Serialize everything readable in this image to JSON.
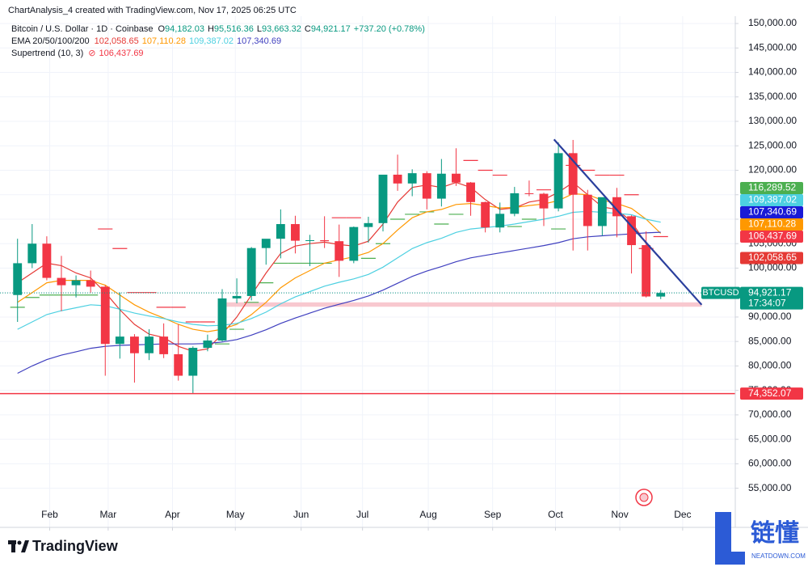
{
  "header": {
    "credit": "ChartAnalysis_4 created with TradingView.com, Nov 17, 2025 06:25 UTC"
  },
  "chart_data": {
    "type": "candlestick",
    "symbol": "Bitcoin / U.S. Dollar · 1D · Coinbase",
    "ohlc_legend": [
      {
        "key": "O",
        "value": "94,182.03"
      },
      {
        "key": "H",
        "value": "95,516.36"
      },
      {
        "key": "L",
        "value": "93,663.32"
      },
      {
        "key": "C",
        "value": "94,921.17"
      }
    ],
    "change": "+737.20 (+0.78%)",
    "x": [
      0,
      1,
      2,
      3,
      4,
      5,
      6,
      7,
      8,
      9,
      10,
      11,
      12,
      13,
      14,
      15,
      16,
      17,
      18,
      19,
      20,
      21,
      22,
      23,
      24,
      25,
      26,
      27,
      28,
      29,
      30,
      31,
      32,
      33,
      34,
      35,
      36,
      37,
      38,
      39,
      40,
      41,
      42,
      43,
      44
    ],
    "open": [
      94500,
      101000,
      105000,
      98000,
      96500,
      97500,
      96200,
      84500,
      86000,
      82600,
      86000,
      82400,
      78000,
      83700,
      85200,
      93800,
      94300,
      104100,
      106000,
      109000,
      105600,
      105700,
      105500,
      101500,
      108400,
      109200,
      119100,
      117300,
      119400,
      114200,
      119300,
      117500,
      113500,
      108300,
      111100,
      115300,
      115200,
      112200,
      123500,
      115000,
      108600,
      114500,
      110600,
      104700,
      94182.03
    ],
    "high": [
      106000,
      109000,
      106500,
      102500,
      98500,
      99500,
      96500,
      95000,
      86500,
      87500,
      88700,
      88500,
      84000,
      86400,
      95700,
      97900,
      104300,
      105800,
      112000,
      110700,
      106800,
      110600,
      108900,
      108500,
      110500,
      119000,
      123200,
      120200,
      119800,
      122300,
      124500,
      117600,
      113600,
      113400,
      116600,
      117900,
      115400,
      125700,
      126200,
      116000,
      114000,
      116400,
      110800,
      107500,
      95516.36
    ],
    "low": [
      89000,
      100000,
      97500,
      91200,
      94000,
      95000,
      78000,
      81500,
      76600,
      81200,
      81600,
      77000,
      74400,
      83000,
      85000,
      92800,
      93400,
      100700,
      102000,
      103000,
      100400,
      104100,
      98200,
      101000,
      105200,
      107500,
      115800,
      114700,
      112000,
      112600,
      116800,
      110700,
      107300,
      107300,
      110600,
      114700,
      108600,
      111600,
      103600,
      103600,
      106600,
      106300,
      98900,
      94000,
      93663.32
    ],
    "close": [
      101000,
      105000,
      98000,
      96500,
      97500,
      96200,
      84500,
      86000,
      82600,
      86000,
      82400,
      78000,
      83700,
      85200,
      93800,
      94300,
      104100,
      106000,
      109000,
      105600,
      105700,
      105500,
      101500,
      108400,
      109200,
      119100,
      117300,
      119400,
      114200,
      119300,
      117500,
      113500,
      108300,
      111100,
      115300,
      115200,
      112200,
      123500,
      115000,
      108600,
      114500,
      110600,
      104700,
      94200,
      94921.17
    ],
    "up_color": "#089981",
    "down_color": "#f23645",
    "ema": {
      "label": "EMA 20/50/100/200",
      "series": [
        {
          "color": "#e53935",
          "legend_value": "102,058.65",
          "values": [
            97000,
            99000,
            101000,
            100500,
            99000,
            98000,
            95000,
            91500,
            88500,
            86500,
            85800,
            84000,
            83000,
            83500,
            86500,
            90000,
            94500,
            99000,
            103000,
            104500,
            105000,
            105300,
            104800,
            104500,
            105500,
            109000,
            113500,
            116500,
            117000,
            116500,
            117500,
            116500,
            114000,
            112000,
            112300,
            113500,
            114000,
            115500,
            117500,
            115000,
            112500,
            112000,
            109500,
            105000,
            102058.65
          ]
        },
        {
          "color": "#ff9800",
          "legend_value": "107,110.28",
          "values": [
            93000,
            95000,
            97000,
            97500,
            97500,
            97500,
            96500,
            94500,
            92500,
            91000,
            89800,
            88500,
            87500,
            87000,
            87500,
            88500,
            90500,
            93000,
            96000,
            98000,
            99500,
            101000,
            101700,
            102300,
            103200,
            105000,
            107800,
            110300,
            111500,
            112000,
            113000,
            113200,
            112800,
            112300,
            112400,
            112800,
            113100,
            113800,
            115200,
            115000,
            113900,
            113200,
            112200,
            110000,
            107110.28
          ]
        },
        {
          "color": "#4dd0e1",
          "legend_value": "109,387.02",
          "values": [
            87500,
            89000,
            90500,
            91300,
            91900,
            92500,
            92300,
            91600,
            90800,
            90200,
            89700,
            89000,
            88500,
            88200,
            88300,
            88700,
            89700,
            91000,
            92700,
            94100,
            95200,
            96300,
            97100,
            97800,
            98700,
            100200,
            102100,
            104000,
            105200,
            106100,
            107300,
            108000,
            108300,
            108600,
            109000,
            109500,
            110000,
            110600,
            111400,
            111600,
            111400,
            111200,
            110900,
            110000,
            109387.02
          ]
        },
        {
          "color": "#3f3fbf",
          "legend_value": "107,340.69",
          "values": [
            78500,
            80000,
            81300,
            82200,
            82900,
            83600,
            84000,
            84200,
            84300,
            84400,
            84500,
            84500,
            84500,
            84600,
            84900,
            85400,
            86300,
            87400,
            88700,
            89800,
            90800,
            91800,
            92600,
            93400,
            94300,
            95500,
            96900,
            98300,
            99400,
            100300,
            101300,
            102100,
            102600,
            103100,
            103600,
            104100,
            104600,
            105200,
            106000,
            106400,
            106600,
            106800,
            107000,
            107200,
            107340.69
          ]
        }
      ]
    },
    "supertrend": {
      "label": "Supertrend (10, 3)",
      "legend_value": "106,437.69",
      "up_color": "#4caf50",
      "down_color": "#f23645",
      "values": [
        92000,
        94000,
        94500,
        94500,
        94500,
        94500,
        108000,
        104000,
        95000,
        95000,
        92000,
        92000,
        89000,
        89000,
        84500,
        87500,
        93000,
        97000,
        101000,
        101000,
        101000,
        101000,
        110300,
        110300,
        102000,
        105000,
        110000,
        111000,
        111500,
        109000,
        111000,
        122000,
        120000,
        119000,
        108500,
        110000,
        116000,
        108000,
        121000,
        120000,
        119000,
        119000,
        115000,
        104000,
        106437.69
      ]
    },
    "price_labels": [
      {
        "value": 116289.52,
        "label": "116,289.52",
        "color": "#4caf50"
      },
      {
        "value": 109387.02,
        "label": "109,387.02",
        "color": "#4dd0e1"
      },
      {
        "value": 107340.69,
        "label": "107,340.69",
        "color": "#1a1ad6"
      },
      {
        "value": 107110.28,
        "label": "107,110.28",
        "color": "#ff9800"
      },
      {
        "value": 106437.69,
        "label": "106,437.69",
        "color": "#f23645"
      },
      {
        "value": 102058.65,
        "label": "102,058.65",
        "color": "#e53935"
      }
    ],
    "last_price": {
      "symbol": "BTCUSD",
      "value": 94921.17,
      "label": "94,921.17",
      "countdown": "17:34:07",
      "color": "#089981"
    },
    "support_line": {
      "value": 74352.07,
      "label": "74,352.07",
      "color": "#f23645"
    },
    "zone": {
      "x": [
        13.7,
        46.8
      ],
      "y": [
        92100,
        93000
      ],
      "color": "#f8c8cf"
    },
    "trendline": {
      "x": [
        36.7,
        46.8
      ],
      "y": [
        126300,
        92500
      ],
      "color": "#2a3f9d"
    },
    "xlim": [
      -1.2,
      49.1
    ],
    "xticks": [
      {
        "value": 2.2,
        "label": "Feb"
      },
      {
        "value": 6.2,
        "label": "Mar"
      },
      {
        "value": 10.6,
        "label": "Apr"
      },
      {
        "value": 14.9,
        "label": "May"
      },
      {
        "value": 19.4,
        "label": "Jun"
      },
      {
        "value": 23.6,
        "label": "Jul"
      },
      {
        "value": 28.1,
        "label": "Aug"
      },
      {
        "value": 32.5,
        "label": "Sep"
      },
      {
        "value": 36.8,
        "label": "Oct"
      },
      {
        "value": 41.2,
        "label": "Nov"
      },
      {
        "value": 45.5,
        "label": "Dec"
      }
    ],
    "ylim": [
      47000,
      151500
    ],
    "yticks": [
      {
        "value": 55000,
        "label": "55,000.00"
      },
      {
        "value": 60000,
        "label": "60,000.00"
      },
      {
        "value": 65000,
        "label": "65,000.00"
      },
      {
        "value": 70000,
        "label": "70,000.00"
      },
      {
        "value": 75000,
        "label": "75,000.00"
      },
      {
        "value": 80000,
        "label": "80,000.00"
      },
      {
        "value": 85000,
        "label": "85,000.00"
      },
      {
        "value": 90000,
        "label": "90,000.00"
      },
      {
        "value": 95000,
        "label": "95,000.00"
      },
      {
        "value": 100000,
        "label": "100,000.00"
      },
      {
        "value": 105000,
        "label": "105,000.00"
      },
      {
        "value": 110000,
        "label": "110,000.00"
      },
      {
        "value": 115000,
        "label": "115,000.00"
      },
      {
        "value": 120000,
        "label": "120,000.00"
      },
      {
        "value": 125000,
        "label": "125,000.00"
      },
      {
        "value": 130000,
        "label": "130,000.00"
      },
      {
        "value": 135000,
        "label": "135,000.00"
      },
      {
        "value": 140000,
        "label": "140,000.00"
      },
      {
        "value": 145000,
        "label": "145,000.00"
      },
      {
        "value": 150000,
        "label": "150,000.00"
      }
    ],
    "grid": true
  },
  "footer": {
    "brand": "TradingView"
  },
  "watermark": {
    "cn": "链懂",
    "site": "NEATDOWN.COM"
  }
}
